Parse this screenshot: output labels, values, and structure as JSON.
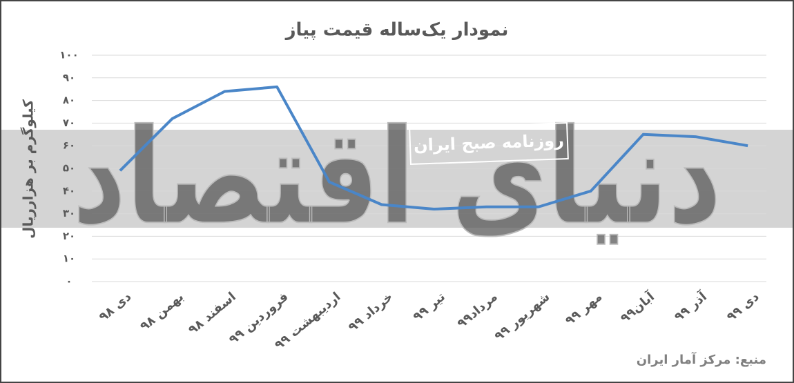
{
  "chart_data": {
    "type": "line",
    "title": "نمودار یک‌ساله قیمت پیاز",
    "y_label": "کیلوگرم بر هزارریال",
    "categories": [
      "دی ۹۸",
      "بهمن ۹۸",
      "اسفند ۹۸",
      "فروردین ۹۹",
      "اردیبهشت ۹۹",
      "خرداد ۹۹",
      "تیر ۹۹",
      "مرداد۹۹",
      "شهریور ۹۹",
      "مهر ۹۹",
      "آبان۹۹",
      "آذر ۹۹",
      "دی ۹۹"
    ],
    "values": [
      49,
      72,
      84,
      86,
      44,
      34,
      32,
      33,
      33,
      40,
      65,
      64,
      60
    ],
    "color": "#4a86c8",
    "ylim": [
      0,
      100
    ],
    "yticks": [
      {
        "value": 0,
        "label": "۰"
      },
      {
        "value": 10,
        "label": "۱۰"
      },
      {
        "value": 20,
        "label": "۲۰"
      },
      {
        "value": 30,
        "label": "۳۰"
      },
      {
        "value": 40,
        "label": "۴۰"
      },
      {
        "value": 50,
        "label": "۵۰"
      },
      {
        "value": 60,
        "label": "۶۰"
      },
      {
        "value": 70,
        "label": "۷۰"
      },
      {
        "value": 80,
        "label": "۸۰"
      },
      {
        "value": 90,
        "label": "۹۰"
      },
      {
        "value": 100,
        "label": "۱۰۰"
      }
    ],
    "grid": true,
    "source": "منبع: مرکز آمار ایران",
    "watermarks": [
      "دنیای اقتصاد",
      "روزنامه صبح ایران"
    ]
  }
}
